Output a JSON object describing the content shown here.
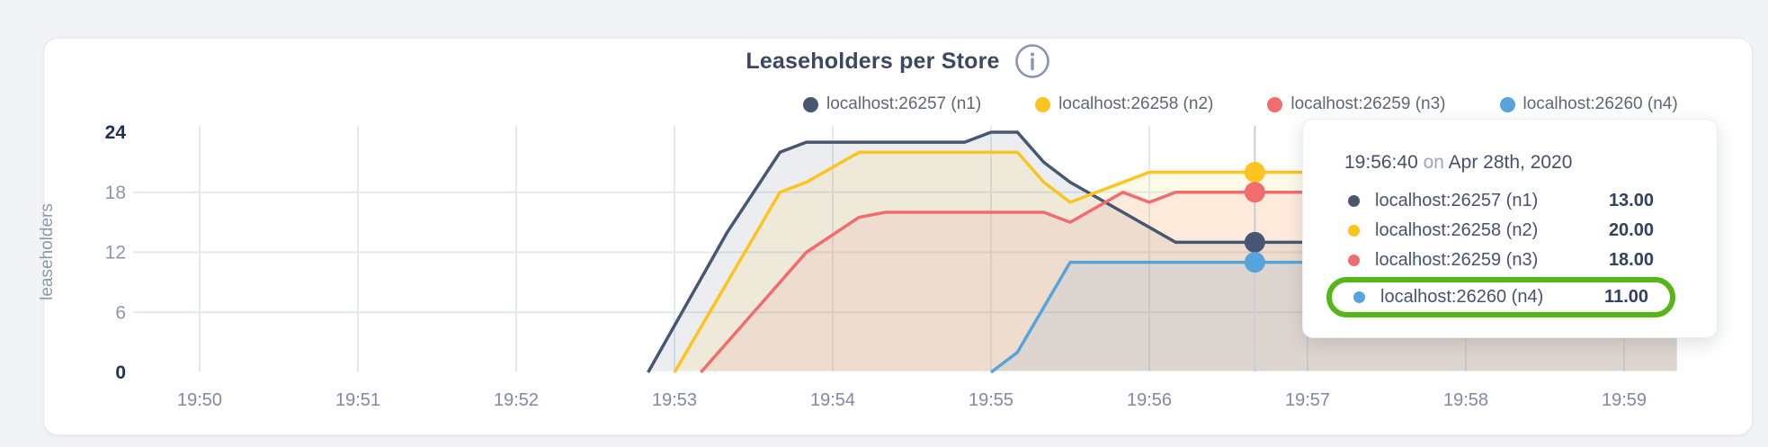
{
  "card": {
    "title": "Leaseholders per Store"
  },
  "chart_data": {
    "type": "area",
    "title": "Leaseholders per Store",
    "xlabel": "",
    "ylabel": "leaseholders",
    "ylim": [
      0,
      24
    ],
    "y_ticks": [
      0,
      6,
      12,
      18,
      24
    ],
    "x_ticks": [
      "19:50",
      "19:51",
      "19:52",
      "19:53",
      "19:54",
      "19:55",
      "19:56",
      "19:57",
      "19:58",
      "19:59"
    ],
    "x_domain": [
      "19:49:30",
      "19:59:20"
    ],
    "grid": true,
    "legend_position": "top",
    "series": [
      {
        "name": "localhost:26257 (n1)",
        "color": "#475672",
        "points": [
          [
            "19:52:50",
            0
          ],
          [
            "19:53:20",
            14
          ],
          [
            "19:53:40",
            22
          ],
          [
            "19:53:50",
            23
          ],
          [
            "19:54:50",
            23
          ],
          [
            "19:55:00",
            24
          ],
          [
            "19:55:10",
            24
          ],
          [
            "19:55:20",
            21
          ],
          [
            "19:55:30",
            19
          ],
          [
            "19:55:50",
            16
          ],
          [
            "19:56:10",
            13
          ],
          [
            "19:59:20",
            13
          ]
        ]
      },
      {
        "name": "localhost:26258 (n2)",
        "color": "#fcc41d",
        "points": [
          [
            "19:53:00",
            0
          ],
          [
            "19:53:40",
            18
          ],
          [
            "19:53:50",
            19
          ],
          [
            "19:54:10",
            22
          ],
          [
            "19:55:10",
            22
          ],
          [
            "19:55:20",
            19
          ],
          [
            "19:55:30",
            17
          ],
          [
            "19:55:40",
            18
          ],
          [
            "19:56:00",
            20
          ],
          [
            "19:59:20",
            20
          ]
        ]
      },
      {
        "name": "localhost:26259 (n3)",
        "color": "#f16d6d",
        "points": [
          [
            "19:53:10",
            0
          ],
          [
            "19:53:30",
            6
          ],
          [
            "19:53:50",
            12
          ],
          [
            "19:54:10",
            15.5
          ],
          [
            "19:54:20",
            16
          ],
          [
            "19:55:20",
            16
          ],
          [
            "19:55:30",
            15
          ],
          [
            "19:55:50",
            18
          ],
          [
            "19:56:00",
            17
          ],
          [
            "19:56:10",
            18
          ],
          [
            "19:59:20",
            18
          ]
        ]
      },
      {
        "name": "localhost:26260 (n4)",
        "color": "#57a4dc",
        "points": [
          [
            "19:55:00",
            0
          ],
          [
            "19:55:10",
            2
          ],
          [
            "19:55:30",
            11
          ],
          [
            "19:59:20",
            11
          ]
        ]
      }
    ],
    "hover": {
      "time": "19:56:40",
      "values": [
        13,
        20,
        18,
        11
      ]
    }
  },
  "tooltip": {
    "time": "19:56:40",
    "connector": "on",
    "date": "Apr 28th, 2020",
    "rows": [
      {
        "name": "localhost:26257 (n1)",
        "value": "13.00"
      },
      {
        "name": "localhost:26258 (n2)",
        "value": "20.00"
      },
      {
        "name": "localhost:26259 (n3)",
        "value": "18.00"
      },
      {
        "name": "localhost:26260 (n4)",
        "value": "11.00"
      }
    ],
    "highlight_index": 3,
    "highlight_color": "#55b519"
  }
}
